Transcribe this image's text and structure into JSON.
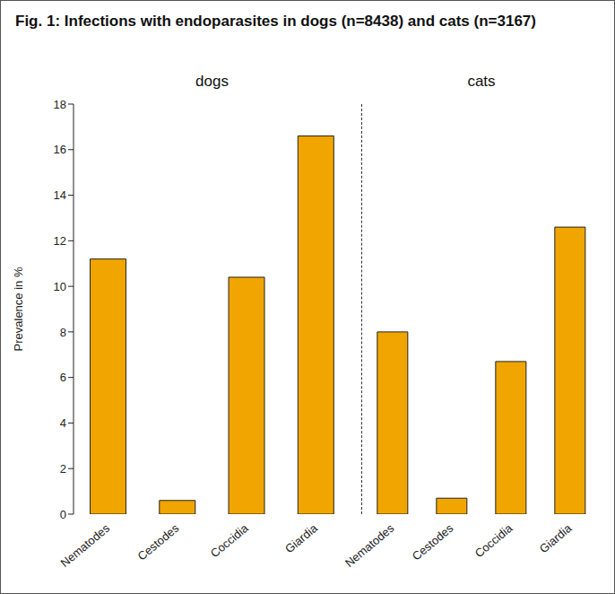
{
  "title": "Fig. 1: Infections with endoparasites in dogs (n=8438) and cats (n=3167)",
  "chart_data": [
    {
      "type": "bar",
      "title": "dogs",
      "y_label": "Prevalence in %",
      "categories": [
        "Nematodes",
        "Cestodes",
        "Coccidia",
        "Giardia"
      ],
      "values": [
        11.2,
        0.6,
        10.4,
        16.6
      ],
      "color": "#f0a500",
      "ylim": [
        0,
        18
      ],
      "yticks": [
        0,
        2,
        4,
        6,
        8,
        10,
        12,
        14,
        16,
        18
      ],
      "grid": false
    },
    {
      "type": "bar",
      "title": "cats",
      "categories": [
        "Nematodes",
        "Cestodes",
        "Coccidia",
        "Giardia"
      ],
      "values": [
        8.0,
        0.7,
        6.7,
        12.6
      ],
      "color": "#f0a500",
      "ylim": [
        0,
        18
      ],
      "yticks": [
        0,
        2,
        4,
        6,
        8,
        10,
        12,
        14,
        16,
        18
      ],
      "grid": false,
      "tick_labels": "x"
    }
  ]
}
